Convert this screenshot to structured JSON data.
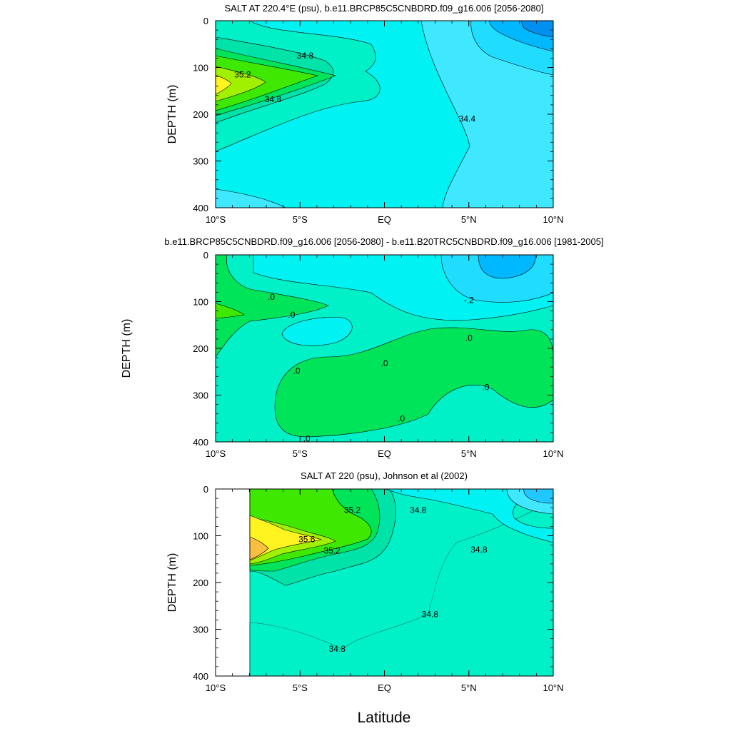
{
  "figure": {
    "xlabel": "Latitude"
  },
  "chart_data": [
    {
      "type": "heatmap",
      "title": "SALT AT 220.4°E (psu), b.e11.BRCP85C5CNBDRD.f09_g16.006 [2056-2080]",
      "ylabel": "DEPTH (m)",
      "xlabel": "",
      "xlim": [
        -10,
        10
      ],
      "ylim": [
        400,
        0
      ],
      "x_ticks": [
        "10°S",
        "5°S",
        "EQ",
        "5°N",
        "10°N"
      ],
      "y_ticks": [
        "0",
        "100",
        "200",
        "300",
        "400"
      ],
      "contour_labels": [
        {
          "text": "34.8",
          "x": -4.7,
          "y": 75
        },
        {
          "text": "35.2",
          "x": -8.4,
          "y": 115
        },
        {
          "text": "34.8",
          "x": -6.6,
          "y": 168
        },
        {
          "text": "34.4",
          "x": 4.9,
          "y": 210
        }
      ]
    },
    {
      "type": "heatmap",
      "title": "b.e11.BRCP85C5CNBDRD.f09_g16.006 [2056-2080] - b.e11.B20TRC5CNBDRD.f09_g16.006 [1981-2005]",
      "ylabel": "DEPTH (m)",
      "xlabel": "",
      "xlim": [
        -10,
        10
      ],
      "ylim": [
        400,
        0
      ],
      "x_ticks": [
        "10°S",
        "5°S",
        "EQ",
        "5°N",
        "10°N"
      ],
      "y_ticks": [
        "0",
        "100",
        "200",
        "300",
        "400"
      ],
      "contour_labels": [
        {
          "text": ".0",
          "x": -6.7,
          "y": 90
        },
        {
          "text": ".0",
          "x": -5.5,
          "y": 128
        },
        {
          "text": "-.2",
          "x": 5.0,
          "y": 97
        },
        {
          "text": ".0",
          "x": 5.0,
          "y": 178
        },
        {
          "text": ".0",
          "x": 0.0,
          "y": 232
        },
        {
          "text": ".0",
          "x": -5.2,
          "y": 248
        },
        {
          "text": ".0",
          "x": 6.0,
          "y": 283
        },
        {
          "text": ".0",
          "x": 1.0,
          "y": 350
        },
        {
          "text": ".0",
          "x": -4.6,
          "y": 393
        }
      ]
    },
    {
      "type": "heatmap",
      "title": "SALT AT 220 (psu), Johnson et al (2002)",
      "ylabel": "DEPTH (m)",
      "xlabel": "",
      "xlim": [
        -10,
        10
      ],
      "ylim": [
        400,
        0
      ],
      "x_ticks": [
        "10°S",
        "5°S",
        "EQ",
        "5°N",
        "10°N"
      ],
      "y_ticks": [
        "0",
        "100",
        "200",
        "300",
        "400"
      ],
      "contour_labels": [
        {
          "text": "35.2",
          "x": -1.9,
          "y": 45
        },
        {
          "text": "34.8",
          "x": 2.0,
          "y": 45
        },
        {
          "text": "35.6",
          "x": -4.6,
          "y": 108
        },
        {
          "text": "35.2",
          "x": -3.1,
          "y": 132
        },
        {
          "text": "34.8",
          "x": 5.6,
          "y": 130
        },
        {
          "text": "34.8",
          "x": 2.7,
          "y": 268
        },
        {
          "text": "34.8",
          "x": -2.8,
          "y": 342
        }
      ]
    }
  ]
}
